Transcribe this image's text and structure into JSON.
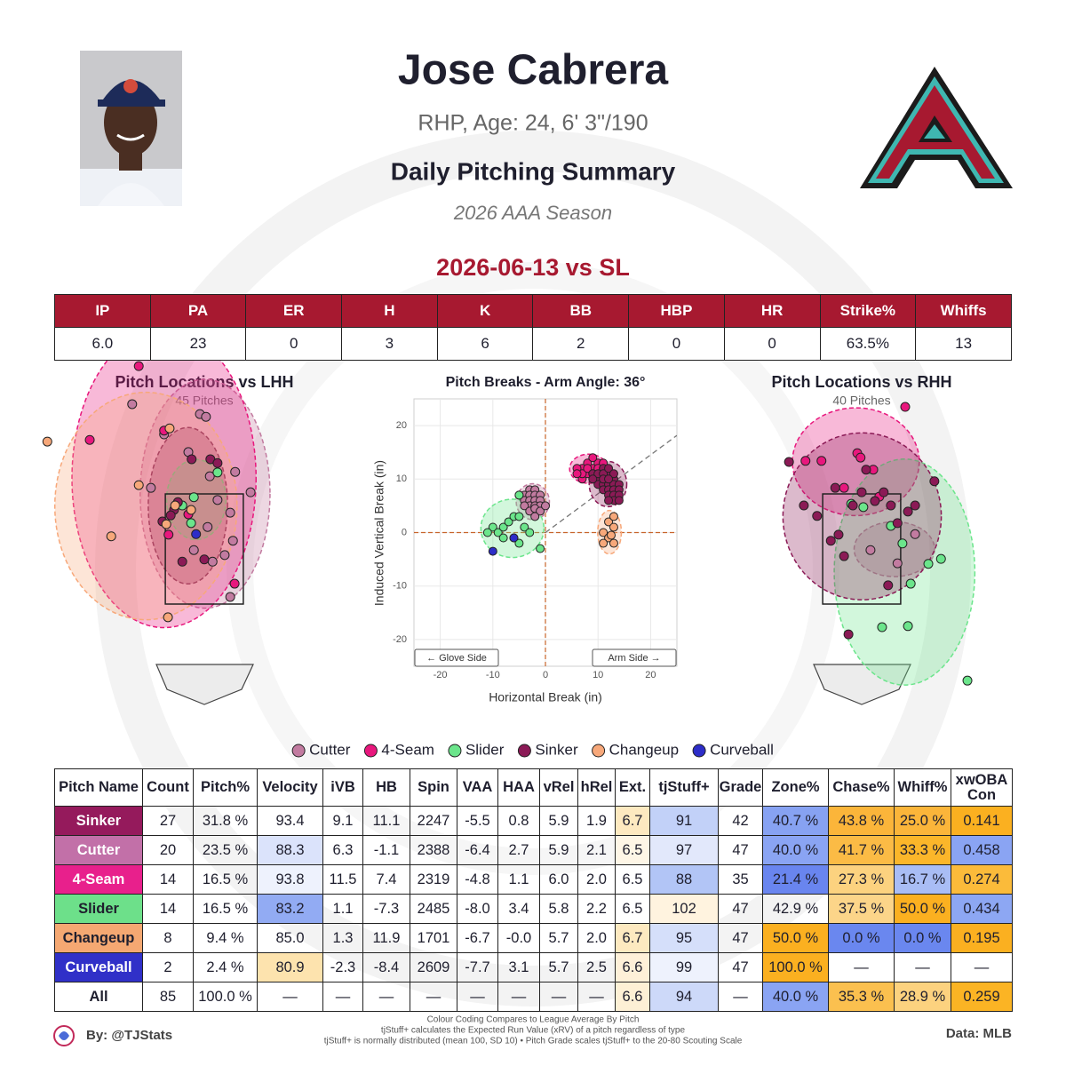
{
  "header": {
    "name": "Jose Cabrera",
    "bio": "RHP, Age: 24, 6' 3\"/190",
    "report": "Daily Pitching Summary",
    "season": "2026 AAA Season",
    "game": "2026-06-13 vs SL"
  },
  "stats": {
    "columns": [
      "IP",
      "PA",
      "ER",
      "H",
      "K",
      "BB",
      "HBP",
      "HR",
      "Strike%",
      "Whiffs"
    ],
    "values": [
      "6.0",
      "23",
      "0",
      "3",
      "6",
      "2",
      "0",
      "0",
      "63.5%",
      "13"
    ]
  },
  "chart_data": [
    {
      "type": "scatter",
      "title": "Pitch Locations vs LHH",
      "subtitle": "45 Pitches",
      "xlim": [
        -3,
        3
      ],
      "ylim": [
        -0.5,
        6.0
      ],
      "series": [
        {
          "name": "Cutter",
          "color": "#c27ba0",
          "x": [
            -1.31,
            -0.08,
            -0.73,
            0.1,
            0.56,
            0.84,
            0.47,
            0.06,
            -0.19,
            0.15,
            0.37,
            0.47,
            -0.97,
            0.24,
            0.52,
            -0.29,
            0.03
          ],
          "values": [
            5.13,
            4.95,
            4.58,
            3.82,
            3.9,
            3.53,
            3.16,
            2.9,
            2.48,
            2.27,
            2.39,
            1.63,
            3.61,
            3.39,
            2.65,
            4.26,
            4.9
          ]
        },
        {
          "name": "4-Seam",
          "color": "#e8177d",
          "x": [
            -1.19,
            -2.08,
            -0.73,
            -0.29,
            0.55,
            -0.65
          ],
          "values": [
            5.82,
            4.48,
            4.65,
            3.13,
            1.87,
            2.76
          ]
        },
        {
          "name": "Slider",
          "color": "#6be58b",
          "x": [
            -0.19,
            0.24,
            -0.24,
            -0.4
          ],
          "values": [
            3.44,
            3.89,
            2.97,
            3.29
          ]
        },
        {
          "name": "Sinker",
          "color": "#8b1a56",
          "x": [
            -0.55,
            -0.61,
            -0.48,
            -0.23,
            0.11,
            0.24,
            -0.4,
            0.0,
            -0.76
          ],
          "values": [
            3.21,
            3.11,
            3.35,
            4.13,
            4.13,
            4.06,
            2.27,
            2.31,
            3.0
          ]
        },
        {
          "name": "Changeup",
          "color": "#f7a87a",
          "x": [
            -2.85,
            -0.66,
            -0.63,
            -1.19,
            -1.69,
            -0.69,
            -0.53,
            -0.24
          ],
          "values": [
            4.45,
            1.26,
            4.69,
            3.66,
            2.73,
            2.95,
            3.29,
            3.21
          ]
        },
        {
          "name": "Curveball",
          "color": "#2d2dc8",
          "x": [
            -0.15
          ],
          "values": [
            2.77
          ]
        }
      ]
    },
    {
      "type": "scatter",
      "title": "Pitch Breaks - Arm Angle: 36°",
      "x_label": "Horizontal Break (in)",
      "y_label": "Induced Vertical Break (in)",
      "annotations": [
        "← Glove Side",
        "Arm Side →"
      ],
      "arm_angle": 36,
      "xlim": [
        -25,
        25
      ],
      "ylim": [
        -25,
        25
      ],
      "xticks": [
        -20,
        -10,
        0,
        10,
        20
      ],
      "yticks": [
        -20,
        -10,
        0,
        10,
        20
      ],
      "grid": true,
      "series": [
        {
          "name": "Cutter",
          "color": "#c27ba0",
          "x": [
            -3,
            -2,
            -4,
            -3,
            -2,
            -1,
            -4,
            -3,
            -2,
            -1,
            -3,
            -2,
            -1,
            -4,
            -3,
            -2,
            -5,
            -1,
            0,
            -2
          ],
          "values": [
            8,
            8,
            7,
            7,
            7,
            7,
            6,
            6,
            6,
            6,
            5,
            5,
            5,
            5,
            4,
            4.5,
            7,
            4,
            5,
            3
          ]
        },
        {
          "name": "4-Seam",
          "color": "#e8177d",
          "x": [
            7,
            8,
            7,
            9,
            10,
            8,
            9,
            7,
            6,
            10,
            8,
            11,
            9,
            6
          ],
          "values": [
            10,
            11,
            12,
            12,
            13,
            13,
            14,
            11,
            12,
            12,
            12,
            13,
            11,
            11
          ]
        },
        {
          "name": "Slider",
          "color": "#6be58b",
          "x": [
            -10,
            -9,
            -8,
            -7,
            -6,
            -5,
            -8,
            -6,
            -4,
            -3,
            -5,
            -11,
            -1,
            -5
          ],
          "values": [
            1,
            0,
            1,
            2,
            3,
            3,
            -1,
            -1,
            1,
            0,
            -2,
            0,
            -3,
            7
          ]
        },
        {
          "name": "Sinker",
          "color": "#8b1a56",
          "x": [
            9,
            10,
            11,
            12,
            13,
            10,
            11,
            12,
            13,
            14,
            11,
            12,
            13,
            14,
            12,
            13,
            14,
            13,
            14,
            12,
            10,
            11,
            12,
            13,
            9,
            11,
            12
          ],
          "values": [
            11,
            10,
            12,
            11,
            10,
            9,
            9,
            9,
            9,
            9,
            8,
            8,
            8,
            8,
            7,
            7,
            7,
            6,
            6,
            6,
            11,
            11,
            12,
            11,
            10,
            10,
            10
          ]
        },
        {
          "name": "Changeup",
          "color": "#f7a87a",
          "x": [
            12,
            13,
            11,
            12,
            13,
            12.5,
            11,
            13
          ],
          "values": [
            2,
            3,
            0,
            -1,
            -2,
            -0.5,
            -2,
            1
          ]
        },
        {
          "name": "Curveball",
          "color": "#2d2dc8",
          "x": [
            -10,
            -6
          ],
          "values": [
            -3.5,
            -1
          ]
        }
      ]
    },
    {
      "type": "scatter",
      "title": "Pitch Locations vs RHH",
      "subtitle": "40 Pitches",
      "xlim": [
        -3,
        3
      ],
      "ylim": [
        -0.5,
        6.0
      ],
      "series": [
        {
          "name": "Cutter",
          "color": "#c27ba0",
          "x": [
            0.97,
            0.65,
            0.16
          ],
          "values": [
            2.77,
            2.24,
            2.48
          ]
        },
        {
          "name": "4-Seam",
          "color": "#e8177d",
          "x": [
            0.79,
            -0.08,
            -0.73,
            0.21,
            -0.02,
            -0.32,
            0.32,
            -1.02
          ],
          "values": [
            5.08,
            4.24,
            4.1,
            3.94,
            4.16,
            3.61,
            3.45,
            4.1
          ]
        },
        {
          "name": "Slider",
          "color": "#6be58b",
          "x": [
            -0.19,
            0.03,
            0.53,
            0.74,
            1.21,
            1.44,
            0.89,
            0.84,
            0.37,
            1.92
          ],
          "values": [
            3.32,
            3.26,
            2.92,
            2.6,
            2.23,
            2.32,
            1.87,
            1.1,
            1.08,
            0.11
          ]
        },
        {
          "name": "Sinker",
          "color": "#8b1a56",
          "x": [
            -1.32,
            -1.05,
            -0.81,
            -0.42,
            -0.32,
            -0.48,
            -0.16,
            0.24,
            0.4,
            0.53,
            0.97,
            0.84,
            1.32,
            0.0,
            -0.24,
            0.48,
            0.08,
            0.65,
            -0.56
          ],
          "values": [
            4.08,
            3.29,
            3.1,
            2.76,
            2.37,
            3.61,
            3.29,
            3.37,
            3.53,
            3.29,
            3.29,
            3.18,
            3.73,
            3.53,
            0.95,
            1.84,
            3.94,
            2.97,
            2.65
          ]
        }
      ]
    }
  ],
  "table": {
    "columns": [
      "Pitch Name",
      "Count",
      "Pitch%",
      "Velocity",
      "iVB",
      "HB",
      "Spin",
      "VAA",
      "HAA",
      "vRel",
      "hRel",
      "Ext.",
      "tjStuff+",
      "Grade",
      "Zone%",
      "Chase%",
      "Whiff%",
      "xwOBA Con"
    ],
    "rows": [
      {
        "cells": [
          "Sinker",
          "27",
          "31.8 %",
          "93.4",
          "9.1",
          "11.1",
          "2247",
          "-5.5",
          "0.8",
          "5.9",
          "1.9",
          "6.7",
          "91",
          "42",
          "40.7 %",
          "43.8 %",
          "25.0 %",
          "0.141"
        ],
        "fills": [
          "#951a5c",
          null,
          null,
          null,
          null,
          null,
          null,
          null,
          null,
          null,
          null,
          "#fde9c0",
          "#c2d1f8",
          null,
          "#87a2f2",
          "#fbb53a",
          "#fbb53a",
          "#fbb020"
        ]
      },
      {
        "cells": [
          "Cutter",
          "20",
          "23.5 %",
          "88.3",
          "6.3",
          "-1.1",
          "2388",
          "-6.4",
          "2.7",
          "5.9",
          "2.1",
          "6.5",
          "97",
          "47",
          "40.0 %",
          "41.7 %",
          "33.3 %",
          "0.458"
        ],
        "fills": [
          "#c270a8",
          null,
          null,
          "#dbe3fb",
          null,
          null,
          null,
          null,
          null,
          null,
          null,
          "#fef6e6",
          "#e2e8fb",
          null,
          "#8aa4f3",
          "#fbbb45",
          "#fbb62a",
          "#8aa4f3"
        ]
      },
      {
        "cells": [
          "4-Seam",
          "14",
          "16.5 %",
          "93.8",
          "11.5",
          "7.4",
          "2319",
          "-4.8",
          "1.1",
          "6.0",
          "2.0",
          "6.5",
          "88",
          "35",
          "21.4 %",
          "27.3 %",
          "16.7 %",
          "0.274"
        ],
        "fills": [
          "#e8208c",
          null,
          null,
          "#eef2fd",
          null,
          null,
          null,
          null,
          null,
          null,
          null,
          null,
          "#b2c5f6",
          null,
          "#6985ef",
          "#fcd27f",
          "#a9bdf5",
          "#fbbb3a"
        ]
      },
      {
        "cells": [
          "Slider",
          "14",
          "16.5 %",
          "83.2",
          "1.1",
          "-7.3",
          "2485",
          "-8.0",
          "3.4",
          "5.8",
          "2.2",
          "6.5",
          "102",
          "47",
          "42.9 %",
          "37.5 %",
          "50.0 %",
          "0.434"
        ],
        "fills": [
          "#6de08a",
          null,
          null,
          "#92abf3",
          null,
          null,
          null,
          null,
          null,
          null,
          null,
          null,
          "#fff3df",
          null,
          null,
          "#fcd589",
          "#fbb020",
          "#8da7f3"
        ]
      },
      {
        "cells": [
          "Changeup",
          "8",
          "9.4 %",
          "85.0",
          "1.3",
          "11.9",
          "1701",
          "-6.7",
          "-0.0",
          "5.7",
          "2.0",
          "6.7",
          "95",
          "47",
          "50.0 %",
          "0.0 %",
          "0.0 %",
          "0.195"
        ],
        "fills": [
          "#f5a872",
          null,
          null,
          null,
          null,
          null,
          null,
          null,
          null,
          null,
          null,
          "#fde9c0",
          "#d5dffa",
          null,
          "#fbb020",
          "#6a87ef",
          "#6a87ef",
          "#fbb020"
        ]
      },
      {
        "cells": [
          "Curveball",
          "2",
          "2.4 %",
          "80.9",
          "-2.3",
          "-8.4",
          "2609",
          "-7.7",
          "3.1",
          "5.7",
          "2.5",
          "6.6",
          "99",
          "47",
          "100.0 %",
          "—",
          "—",
          "—"
        ],
        "fills": [
          "#3030c8",
          null,
          null,
          "#fde3ae",
          null,
          null,
          null,
          null,
          null,
          null,
          null,
          "#fef0d8",
          "#eef2fd",
          null,
          "#fbb020",
          null,
          null,
          null
        ]
      },
      {
        "cells": [
          "All",
          "85",
          "100.0 %",
          "—",
          "—",
          "—",
          "—",
          "—",
          "—",
          "—",
          "—",
          "6.6",
          "94",
          "—",
          "40.0 %",
          "35.3 %",
          "28.9 %",
          "0.259"
        ],
        "fills": [
          null,
          null,
          null,
          null,
          null,
          null,
          null,
          null,
          null,
          null,
          null,
          "#fdf0d5",
          "#cdd9f9",
          null,
          "#8aa4f3",
          "#fbc04f",
          "#fcd27f",
          "#fbb424"
        ]
      }
    ]
  },
  "footer": {
    "credit": "By: @TJStats",
    "notes": [
      "Colour Coding Compares to League Average By Pitch",
      "tjStuff+ calculates the Expected Run Value (xRV) of a pitch regardless of type",
      "tjStuff+ is normally distributed (mean 100, SD 10) • Pitch Grade scales tjStuff+ to the 20-80 Scouting Scale"
    ],
    "source": "Data: MLB"
  }
}
